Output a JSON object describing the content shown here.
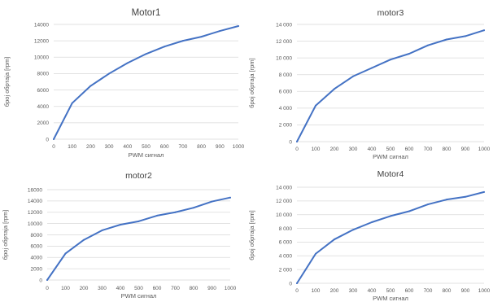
{
  "chart_data": [
    {
      "id": "motor1",
      "type": "line",
      "title": "Motor1",
      "xlabel": "PWM сигнал",
      "ylabel": "број обртаја [rpm]",
      "x": [
        0,
        100,
        200,
        300,
        400,
        500,
        600,
        700,
        800,
        900,
        1000
      ],
      "xticks": [
        0,
        100,
        200,
        300,
        400,
        500,
        600,
        700,
        800,
        900,
        1000
      ],
      "ylim": [
        0,
        14000
      ],
      "yticks": [
        0,
        2000,
        4000,
        6000,
        8000,
        10000,
        12000,
        14000
      ],
      "ytick_labels": [
        "0",
        "2000",
        "4000",
        "6000",
        "8000",
        "10000",
        "12000",
        "14000"
      ],
      "grid": "horizontal",
      "legend": "none",
      "series": [
        {
          "values": [
            0,
            4400,
            6500,
            8000,
            9300,
            10400,
            11300,
            12000,
            12500,
            13200,
            13800
          ],
          "color": "#4472c4"
        }
      ]
    },
    {
      "id": "motor3",
      "type": "line",
      "title": "motor3",
      "xlabel": "PWM сигнал",
      "ylabel": "број обртаја [rpm]",
      "x": [
        0,
        100,
        200,
        300,
        400,
        500,
        600,
        700,
        800,
        900,
        1000
      ],
      "xticks": [
        0,
        100,
        200,
        300,
        400,
        500,
        600,
        700,
        800,
        900,
        1000
      ],
      "ylim": [
        0,
        14000
      ],
      "yticks": [
        0,
        2000,
        4000,
        6000,
        8000,
        10000,
        12000,
        14000
      ],
      "ytick_labels": [
        "0",
        "2 000",
        "4 000",
        "6 000",
        "8 000",
        "10 000",
        "12 000",
        "14 000"
      ],
      "grid": "horizontal",
      "legend": "none",
      "series": [
        {
          "values": [
            0,
            4300,
            6300,
            7800,
            8800,
            9800,
            10500,
            11500,
            12200,
            12600,
            13300
          ],
          "color": "#4472c4"
        }
      ]
    },
    {
      "id": "motor2",
      "type": "line",
      "title": "motor2",
      "xlabel": "PWM сигнал",
      "ylabel": "број обртаја [rpm]",
      "x": [
        0,
        100,
        200,
        300,
        400,
        500,
        600,
        700,
        800,
        900,
        1000
      ],
      "xticks": [
        0,
        100,
        200,
        300,
        400,
        500,
        600,
        700,
        800,
        900,
        1000
      ],
      "ylim": [
        0,
        16000
      ],
      "yticks": [
        0,
        2000,
        4000,
        6000,
        8000,
        10000,
        12000,
        14000,
        16000
      ],
      "ytick_labels": [
        "0",
        "2000",
        "4000",
        "6000",
        "8000",
        "10000",
        "12000",
        "14000",
        "16000"
      ],
      "grid": "horizontal",
      "legend": "none",
      "series": [
        {
          "values": [
            0,
            4700,
            7100,
            8800,
            9800,
            10400,
            11400,
            12000,
            12800,
            13900,
            14600
          ],
          "color": "#4472c4"
        }
      ]
    },
    {
      "id": "motor4",
      "type": "line",
      "title": "Motor4",
      "xlabel": "PWM сигнал",
      "ylabel": "број обртаја [rpm]",
      "x": [
        0,
        100,
        200,
        300,
        400,
        500,
        600,
        700,
        800,
        900,
        1000
      ],
      "xticks": [
        0,
        100,
        200,
        300,
        400,
        500,
        600,
        700,
        800,
        900,
        1000
      ],
      "ylim": [
        0,
        14000
      ],
      "yticks": [
        0,
        2000,
        4000,
        6000,
        8000,
        10000,
        12000,
        14000
      ],
      "ytick_labels": [
        "0",
        "2 000",
        "4 000",
        "6 000",
        "8 000",
        "10 000",
        "12 000",
        "14 000"
      ],
      "grid": "horizontal",
      "legend": "none",
      "series": [
        {
          "values": [
            0,
            4300,
            6400,
            7800,
            8900,
            9800,
            10500,
            11500,
            12200,
            12600,
            13300
          ],
          "color": "#4472c4"
        }
      ]
    }
  ]
}
